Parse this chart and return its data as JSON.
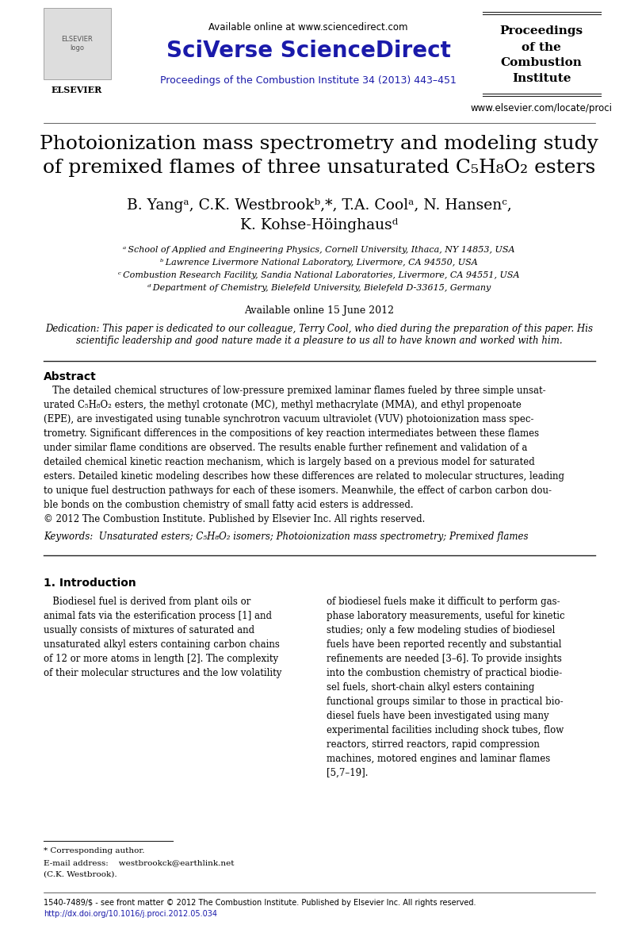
{
  "bg_color": "#ffffff",
  "header": {
    "available_online_text": "Available online at www.sciencedirect.com",
    "journal_title": "SciVerse ScienceDirect",
    "journal_subtitle": "Proceedings of the Combustion Institute 34 (2013) 443–451",
    "right_box_lines": [
      "Proceedings",
      "of the",
      "Combustion",
      "Institute"
    ],
    "website": "www.elsevier.com/locate/proci",
    "journal_title_color": "#1a1aaa",
    "journal_subtitle_color": "#1a1aaa"
  },
  "paper_title_line1": "Photoionization mass spectrometry and modeling study",
  "paper_title_line2": "of premixed flames of three unsaturated C",
  "paper_title_line2b": "5",
  "paper_title_line2c": "H",
  "paper_title_line2d": "8",
  "paper_title_line2e": "O",
  "paper_title_line2f": "2",
  "paper_title_line2g": " esters",
  "authors_line1": "B. Yangᵃ, C.K. Westbrookᵇ,*, T.A. Coolᵃ, N. Hansenᶜ,",
  "authors_line2": "K. Kohse-Höinghausᵈ",
  "affil_a": "ᵃ School of Applied and Engineering Physics, Cornell University, Ithaca, NY 14853, USA",
  "affil_b": "ᵇ Lawrence Livermore National Laboratory, Livermore, CA 94550, USA",
  "affil_c": "ᶜ Combustion Research Facility, Sandia National Laboratories, Livermore, CA 94551, USA",
  "affil_d": "ᵈ Department of Chemistry, Bielefeld University, Bielefeld D-33615, Germany",
  "available_online": "Available online 15 June 2012",
  "dedication": "Dedication: This paper is dedicated to our colleague, Terry Cool, who died during the preparation of this paper. His\nscientific leadership and good nature made it a pleasure to us all to have known and worked with him.",
  "abstract_title": "Abstract",
  "abstract_body": "   The detailed chemical structures of low-pressure premixed laminar flames fueled by three simple unsat-\nurated C₅H₈O₂ esters, the methyl crotonate (MC), methyl methacrylate (MMA), and ethyl propenoate\n(EPE), are investigated using tunable synchrotron vacuum ultraviolet (VUV) photoionization mass spec-\ntrometry. Significant differences in the compositions of key reaction intermediates between these flames\nunder similar flame conditions are observed. The results enable further refinement and validation of a\ndetailed chemical kinetic reaction mechanism, which is largely based on a previous model for saturated\nesters. Detailed kinetic modeling describes how these differences are related to molecular structures, leading\nto unique fuel destruction pathways for each of these isomers. Meanwhile, the effect of carbon carbon dou-\nble bonds on the combustion chemistry of small fatty acid esters is addressed.\n© 2012 The Combustion Institute. Published by Elsevier Inc. All rights reserved.",
  "keywords": "Keywords:  Unsaturated esters; C₅H₈O₂ isomers; Photoionization mass spectrometry; Premixed flames",
  "section1_title": "1. Introduction",
  "intro_col1_para1": "   Biodiesel fuel is derived from plant oils or\nanimal fats via the esterification process [1] and\nusually consists of mixtures of saturated and\nunsaturated alkyl esters containing carbon chains\nof 12 or more atoms in length [2]. The complexity\nof their molecular structures and the low volatility",
  "intro_col2_para1": "of biodiesel fuels make it difficult to perform gas-\nphase laboratory measurements, useful for kinetic\nstudies; only a few modeling studies of biodiesel\nfuels have been reported recently and substantial\nrefinements are needed [3–6]. To provide insights\ninto the combustion chemistry of practical biodie-\nsel fuels, short-chain alkyl esters containing\nfunctional groups similar to those in practical bio-\ndiesel fuels have been investigated using many\nexperimental facilities including shock tubes, flow\nreactors, stirred reactors, rapid compression\nmachines, motored engines and laminar flames\n[5,7–19].",
  "footnote_star": "* Corresponding author.",
  "footnote_email": "E-mail address:     westbrookck@earthlink.net\n(C.K. Westbrook).",
  "bottom_line1": "1540-7489/$ - see front matter © 2012 The Combustion Institute. Published by Elsevier Inc. All rights reserved.",
  "bottom_line2": "http://dx.doi.org/10.1016/j.proci.2012.05.034",
  "bottom_line2_color": "#1a1aaa",
  "text_color": "#000000",
  "author_superscript_color": "#1a1aaa"
}
